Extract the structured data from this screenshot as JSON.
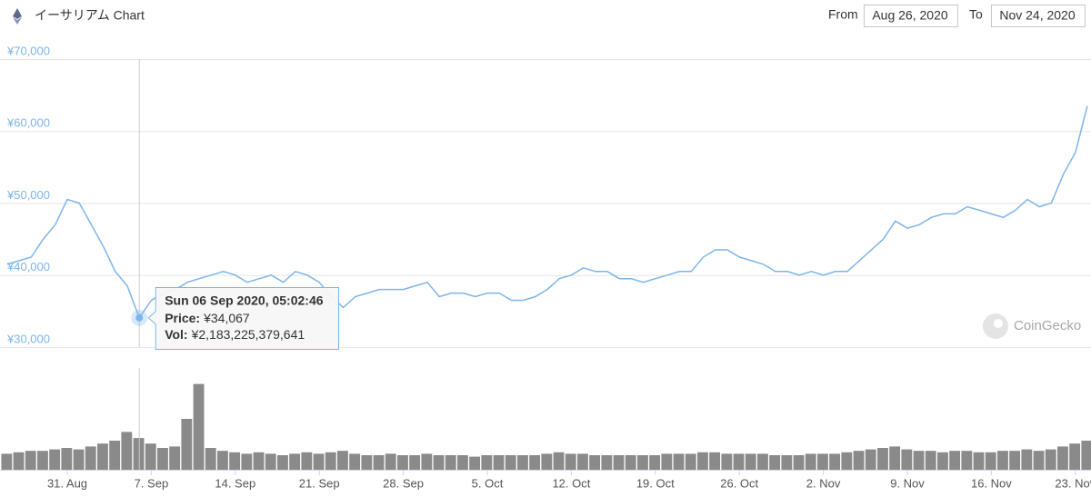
{
  "chart_data": {
    "type": "line",
    "title": "イーサリアム Chart",
    "range": {
      "from_label": "From",
      "from": "Aug 26, 2020",
      "to_label": "To",
      "to": "Nov 24, 2020"
    },
    "categories": [
      null,
      null,
      null,
      null,
      null,
      "31. Aug",
      null,
      null,
      null,
      null,
      null,
      null,
      "7. Sep",
      null,
      null,
      null,
      null,
      null,
      null,
      "14. Sep",
      null,
      null,
      null,
      null,
      null,
      null,
      "21. Sep",
      null,
      null,
      null,
      null,
      null,
      null,
      "28. Sep",
      null,
      null,
      null,
      null,
      null,
      null,
      "5. Oct",
      null,
      null,
      null,
      null,
      null,
      null,
      "12. Oct",
      null,
      null,
      null,
      null,
      null,
      null,
      "19. Oct",
      null,
      null,
      null,
      null,
      null,
      null,
      "26. Oct",
      null,
      null,
      null,
      null,
      null,
      null,
      "2. Nov",
      null,
      null,
      null,
      null,
      null,
      null,
      "9. Nov",
      null,
      null,
      null,
      null,
      null,
      null,
      "16. Nov",
      null,
      null,
      null,
      null,
      null,
      null,
      "23. Nov",
      null
    ],
    "series": [
      {
        "color": "#7cb5ec",
        "values": [
          41500,
          42000,
          42500,
          45000,
          47000,
          50500,
          50000,
          47000,
          44000,
          40500,
          38500,
          34067,
          36500,
          37500,
          38000,
          39000,
          39500,
          40000,
          40500,
          40000,
          39000,
          39500,
          40000,
          39000,
          40500,
          40000,
          39000,
          37000,
          35500,
          37000,
          37500,
          38000,
          38000,
          38000,
          38500,
          39000,
          37000,
          37500,
          37500,
          37000,
          37500,
          37500,
          36500,
          36500,
          37000,
          38000,
          39500,
          40000,
          41000,
          40500,
          40500,
          39500,
          39500,
          39000,
          39500,
          40000,
          40500,
          40500,
          42500,
          43500,
          43500,
          42500,
          42000,
          41500,
          40500,
          40500,
          40000,
          40500,
          40000,
          40500,
          40500,
          42000,
          43500,
          45000,
          47500,
          46500,
          47000,
          48000,
          48500,
          48500,
          49500,
          49000,
          48500,
          48000,
          49000,
          50500,
          49500,
          50000,
          54000,
          57000,
          63500
        ]
      }
    ],
    "ylim": [
      30000,
      70000
    ],
    "yticks": [
      {
        "value": 30000,
        "label": "¥30,000"
      },
      {
        "value": 40000,
        "label": "¥40,000"
      },
      {
        "value": 50000,
        "label": "¥50,000"
      },
      {
        "value": 60000,
        "label": "¥60,000"
      },
      {
        "value": 70000,
        "label": "¥70,000"
      }
    ],
    "grid": true,
    "volume": {
      "color": "#8a8a8a",
      "ylim": [
        0,
        7000000000000.0
      ],
      "values": [
        1100000000000.0,
        1200000000000.0,
        1300000000000.0,
        1300000000000.0,
        1400000000000.0,
        1500000000000.0,
        1400000000000.0,
        1600000000000.0,
        1800000000000.0,
        2000000000000.0,
        2600000000000.0,
        2183225379641,
        1800000000000.0,
        1500000000000.0,
        1600000000000.0,
        3500000000000.0,
        5900000000000.0,
        1500000000000.0,
        1300000000000.0,
        1200000000000.0,
        1100000000000.0,
        1200000000000.0,
        1100000000000.0,
        1000000000000.0,
        1100000000000.0,
        1200000000000.0,
        1100000000000.0,
        1200000000000.0,
        1300000000000.0,
        1100000000000.0,
        1000000000000.0,
        1000000000000.0,
        1100000000000.0,
        1000000000000.0,
        1000000000000.0,
        1100000000000.0,
        1000000000000.0,
        1000000000000.0,
        1000000000000.0,
        900000000000.0,
        1000000000000.0,
        1000000000000.0,
        1000000000000.0,
        1000000000000.0,
        1000000000000.0,
        1100000000000.0,
        1200000000000.0,
        1100000000000.0,
        1100000000000.0,
        1000000000000.0,
        1000000000000.0,
        1000000000000.0,
        1000000000000.0,
        1000000000000.0,
        1000000000000.0,
        1100000000000.0,
        1100000000000.0,
        1100000000000.0,
        1200000000000.0,
        1200000000000.0,
        1100000000000.0,
        1100000000000.0,
        1100000000000.0,
        1100000000000.0,
        1000000000000.0,
        1000000000000.0,
        1000000000000.0,
        1100000000000.0,
        1100000000000.0,
        1100000000000.0,
        1200000000000.0,
        1300000000000.0,
        1400000000000.0,
        1500000000000.0,
        1600000000000.0,
        1400000000000.0,
        1300000000000.0,
        1300000000000.0,
        1200000000000.0,
        1300000000000.0,
        1300000000000.0,
        1200000000000.0,
        1200000000000.0,
        1300000000000.0,
        1300000000000.0,
        1400000000000.0,
        1300000000000.0,
        1400000000000.0,
        1600000000000.0,
        1800000000000.0,
        2000000000000.0
      ]
    },
    "tooltip": {
      "index": 11,
      "date": "Sun 06 Sep 2020, 05:02:46",
      "price_label": "Price:",
      "price": "¥34,067",
      "vol_label": "Vol:",
      "vol": "¥2,183,225,379,641"
    },
    "watermark": "CoinGecko"
  }
}
